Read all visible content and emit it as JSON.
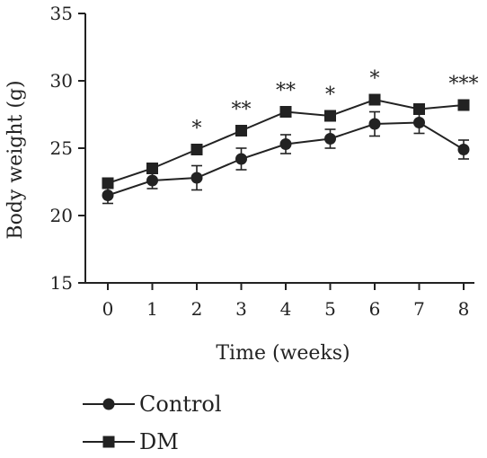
{
  "chart_data": {
    "type": "line",
    "title": "",
    "xlabel": "Time (weeks)",
    "ylabel": "Body weight (g)",
    "x": [
      0,
      1,
      2,
      3,
      4,
      5,
      6,
      7,
      8
    ],
    "xticks": [
      "0",
      "1",
      "2",
      "3",
      "4",
      "5",
      "6",
      "7",
      "8"
    ],
    "ylim": [
      15,
      35
    ],
    "yticks": [
      "15",
      "20",
      "25",
      "30",
      "35"
    ],
    "grid": false,
    "legend_position": "bottom-left",
    "series": [
      {
        "name": "Control",
        "marker": "circle",
        "color": "#222222",
        "values": [
          21.5,
          22.6,
          22.8,
          24.2,
          25.3,
          25.7,
          26.8,
          26.9,
          24.9
        ],
        "errors": [
          0.6,
          0.6,
          0.9,
          0.8,
          0.7,
          0.7,
          0.9,
          0.8,
          0.7
        ]
      },
      {
        "name": "DM",
        "marker": "square",
        "color": "#222222",
        "values": [
          22.4,
          23.5,
          24.9,
          26.3,
          27.7,
          27.4,
          28.6,
          27.9,
          28.2
        ],
        "errors": [
          0.3,
          0.3,
          0.3,
          0.3,
          0.3,
          0.3,
          0.3,
          0.3,
          0.3
        ]
      }
    ],
    "annotations": [
      {
        "x": 2,
        "text": "*"
      },
      {
        "x": 3,
        "text": "**"
      },
      {
        "x": 4,
        "text": "**"
      },
      {
        "x": 5,
        "text": "*"
      },
      {
        "x": 6,
        "text": "*"
      },
      {
        "x": 8,
        "text": "***"
      }
    ]
  }
}
